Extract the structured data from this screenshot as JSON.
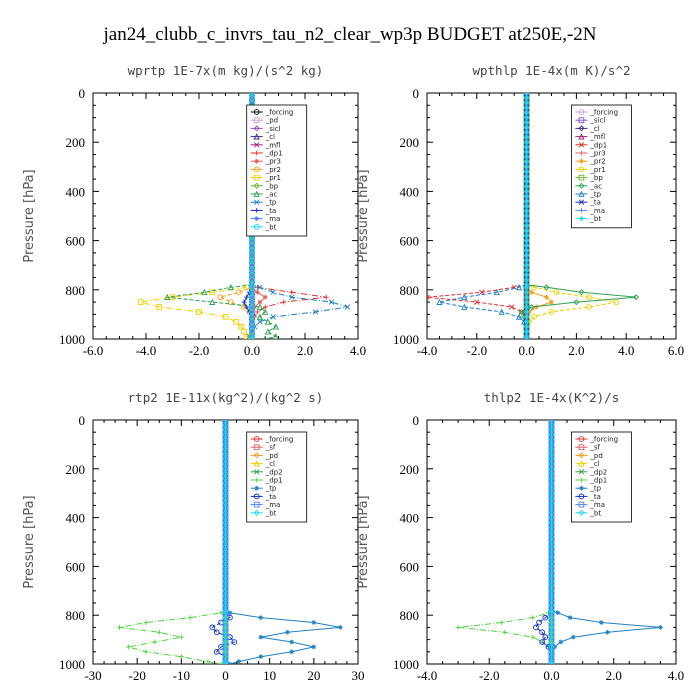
{
  "figure_title": "jan24_clubb_c_invrs_tau_n2_clear_wp3p  BUDGET at250E,-2N",
  "chart_data": [
    {
      "type": "line",
      "title": "wprtp   1E-7x(m kg)/(s^2 kg)",
      "ylabel": "Pressure [hPa]",
      "xlim": [
        -6,
        4
      ],
      "ylim": [
        1000,
        0
      ],
      "xticks": [
        "-6.0",
        "-4.0",
        "-2.0",
        "0.0",
        "2.0",
        "4.0"
      ],
      "yticks": [
        "0",
        "200",
        "400",
        "600",
        "800",
        "1000"
      ],
      "legend_position": "top-right",
      "y": [
        790,
        810,
        830,
        850,
        870,
        890,
        910,
        930,
        950,
        970,
        990,
        1000
      ],
      "series": [
        {
          "name": "_forcing",
          "color": "#000000",
          "values": [
            0,
            0,
            0,
            0,
            0,
            0,
            0,
            0,
            0,
            0,
            0,
            0
          ]
        },
        {
          "name": "_pd",
          "color": "#c8a0e0",
          "values": [
            0,
            0,
            0,
            0,
            0,
            0,
            0,
            0,
            0,
            0,
            0,
            0
          ]
        },
        {
          "name": "_sicl",
          "color": "#9050c0",
          "values": [
            0,
            0,
            0,
            0,
            0,
            0,
            0,
            0,
            0,
            0,
            0,
            0
          ]
        },
        {
          "name": "_cl",
          "color": "#3a2e8a",
          "values": [
            0,
            0,
            0,
            0,
            0,
            0,
            0,
            0,
            0,
            0,
            0,
            0
          ]
        },
        {
          "name": "_mfl",
          "color": "#a0206a",
          "values": [
            0,
            0,
            0,
            0,
            0,
            0,
            0,
            0,
            0,
            0,
            0,
            0
          ]
        },
        {
          "name": "_dp1",
          "color": "#e03030",
          "values": [
            0.2,
            1.5,
            2.8,
            1.2,
            0.5,
            0.2,
            0.1,
            0,
            0,
            0,
            0,
            0
          ]
        },
        {
          "name": "_pr3",
          "color": "#e06060",
          "values": [
            0,
            0.2,
            0.5,
            0.3,
            0.1,
            0,
            0,
            0,
            0,
            0,
            0,
            0
          ]
        },
        {
          "name": "_pr2",
          "color": "#f0a020",
          "values": [
            0,
            -0.5,
            -1.2,
            -0.8,
            -0.3,
            -0.1,
            0,
            0,
            0,
            0,
            0,
            0
          ]
        },
        {
          "name": "_pr1",
          "color": "#f0d000",
          "values": [
            -0.2,
            -1.5,
            -3,
            -4.2,
            -3.5,
            -2,
            -1,
            -0.6,
            -0.4,
            -0.3,
            -0.2,
            -0.1
          ]
        },
        {
          "name": "_bp",
          "color": "#70b030",
          "values": [
            0,
            0,
            0,
            0,
            0,
            0,
            0,
            0,
            0,
            0,
            0,
            0
          ]
        },
        {
          "name": "_ac",
          "color": "#30a050",
          "values": [
            -0.8,
            -1.8,
            -3.2,
            -1.5,
            0.3,
            0.5,
            0.3,
            0.6,
            0.9,
            0.6,
            0.9,
            0.5
          ]
        },
        {
          "name": "_tp",
          "color": "#2080c0",
          "values": [
            0.3,
            0.8,
            1.5,
            3,
            3.6,
            2.4,
            0.8,
            0.3,
            0.1,
            0,
            -0.1,
            0
          ]
        },
        {
          "name": "_ta",
          "color": "#1030c0",
          "values": [
            0,
            -0.1,
            -0.2,
            -0.3,
            -0.2,
            -0.1,
            0,
            0,
            0,
            0,
            0,
            0
          ]
        },
        {
          "name": "_ma",
          "color": "#5080ff",
          "values": [
            0,
            0,
            0,
            0,
            0,
            0,
            0,
            0,
            0,
            0,
            0,
            0
          ]
        },
        {
          "name": "_bt",
          "color": "#20d8f0",
          "values": [
            0,
            0,
            0,
            0,
            0,
            0,
            0,
            0,
            0,
            0,
            0,
            0
          ]
        }
      ]
    },
    {
      "type": "line",
      "title": "wpthlp   1E-4x(m K)/s^2",
      "ylabel": "Pressure [hPa]",
      "xlim": [
        -4,
        6
      ],
      "ylim": [
        1000,
        0
      ],
      "xticks": [
        "-4.0",
        "-2.0",
        "0.0",
        "2.0",
        "4.0",
        "6.0"
      ],
      "yticks": [
        "0",
        "200",
        "400",
        "600",
        "800",
        "1000"
      ],
      "legend_position": "top-right",
      "y": [
        790,
        810,
        830,
        850,
        870,
        890,
        910,
        930,
        950,
        970,
        990,
        1000
      ],
      "series": [
        {
          "name": "_forcing",
          "color": "#c8a0e0",
          "values": [
            0,
            0,
            0,
            0,
            0,
            0,
            0,
            0,
            0,
            0,
            0,
            0
          ]
        },
        {
          "name": "_sicl",
          "color": "#9050c0",
          "values": [
            0,
            0,
            0,
            0,
            0,
            0,
            0,
            0,
            0,
            0,
            0,
            0
          ]
        },
        {
          "name": "_cl",
          "color": "#3a2e8a",
          "values": [
            0,
            0,
            0,
            0,
            0,
            0,
            0,
            0,
            0,
            0,
            0,
            0
          ]
        },
        {
          "name": "_mfl",
          "color": "#a0206a",
          "values": [
            0,
            0,
            0,
            0,
            0,
            0,
            0,
            0,
            0,
            0,
            0,
            0
          ]
        },
        {
          "name": "_dp1",
          "color": "#e03030",
          "values": [
            -0.5,
            -1.8,
            -4,
            -2,
            -0.6,
            -0.2,
            0,
            0,
            0,
            0,
            0,
            0
          ]
        },
        {
          "name": "_pr3",
          "color": "#e06060",
          "values": [
            0,
            0,
            0,
            0,
            0,
            0,
            0,
            0,
            0,
            0,
            0,
            0
          ]
        },
        {
          "name": "_pr2",
          "color": "#f0a020",
          "values": [
            0,
            0.2,
            0.8,
            1,
            0.4,
            0.1,
            0,
            0,
            0,
            0,
            0,
            0
          ]
        },
        {
          "name": "_pr1",
          "color": "#f0d000",
          "values": [
            0.3,
            1.2,
            2.5,
            3.6,
            2.5,
            1,
            0.3,
            0.1,
            0,
            0,
            0,
            0
          ]
        },
        {
          "name": "_bp",
          "color": "#70b030",
          "values": [
            0,
            0,
            0,
            0,
            0,
            0,
            0,
            0,
            0,
            0,
            0,
            0
          ]
        },
        {
          "name": "_ac",
          "color": "#30a050",
          "values": [
            0.8,
            2.2,
            4.4,
            2,
            0.2,
            -0.2,
            -0.1,
            0,
            0,
            0,
            0,
            0
          ]
        },
        {
          "name": "_tp",
          "color": "#2080c0",
          "values": [
            -0.3,
            -1.2,
            -2.5,
            -3.5,
            -2.5,
            -1,
            -0.3,
            -0.1,
            0,
            0,
            0,
            0
          ]
        },
        {
          "name": "_ta",
          "color": "#1030c0",
          "values": [
            0,
            0,
            0,
            0,
            0,
            0,
            0,
            0,
            0,
            0,
            0,
            0
          ]
        },
        {
          "name": "_ma",
          "color": "#5080ff",
          "values": [
            0,
            0,
            0,
            0,
            0,
            0,
            0,
            0,
            0,
            0,
            0,
            0
          ]
        },
        {
          "name": "_bt",
          "color": "#20d8f0",
          "values": [
            0,
            0,
            0,
            0,
            0,
            0,
            0,
            0,
            0,
            0,
            0,
            0
          ]
        }
      ]
    },
    {
      "type": "line",
      "title": "rtp2   1E-11x(kg^2)/(kg^2 s)",
      "ylabel": "Pressure [hPa]",
      "xlim": [
        -30,
        30
      ],
      "ylim": [
        1000,
        0
      ],
      "xticks": [
        "-30",
        "-20",
        "-10",
        "0",
        "10",
        "20",
        "30"
      ],
      "yticks": [
        "0",
        "200",
        "400",
        "600",
        "800",
        "1000"
      ],
      "legend_position": "top-right",
      "y": [
        790,
        810,
        830,
        850,
        870,
        890,
        910,
        930,
        950,
        970,
        990,
        1000
      ],
      "series": [
        {
          "name": "_forcing",
          "color": "#e03030",
          "values": [
            0,
            0,
            0,
            0,
            0,
            0,
            0,
            0,
            0,
            0,
            0,
            0
          ]
        },
        {
          "name": "_sf",
          "color": "#e06060",
          "values": [
            0,
            0,
            0,
            0,
            0,
            0,
            0,
            0,
            0,
            0,
            0,
            0
          ]
        },
        {
          "name": "_pd",
          "color": "#f0a020",
          "values": [
            0,
            0,
            0,
            0,
            0,
            0,
            0,
            0,
            0,
            0,
            0,
            0
          ]
        },
        {
          "name": "_cl",
          "color": "#f0d000",
          "values": [
            0,
            0,
            0,
            0,
            0,
            0,
            0,
            0,
            0,
            0,
            0,
            0
          ]
        },
        {
          "name": "_dp2",
          "color": "#30a050",
          "values": [
            0,
            0,
            0,
            0,
            0,
            0,
            0,
            0,
            0,
            0,
            0,
            0
          ]
        },
        {
          "name": "_dp1",
          "color": "#50d040",
          "values": [
            -1,
            -8,
            -18,
            -24,
            -15,
            -10,
            -16,
            -22,
            -18,
            -10,
            -4,
            -1
          ]
        },
        {
          "name": "_tp",
          "color": "#2080c0",
          "values": [
            1,
            8,
            20,
            26,
            14,
            8,
            15,
            20,
            15,
            8,
            3,
            1
          ]
        },
        {
          "name": "_ta",
          "color": "#1030c0",
          "values": [
            0,
            1,
            -1,
            -3,
            -2,
            1,
            2,
            -1,
            -2,
            0,
            0,
            0
          ]
        },
        {
          "name": "_ma",
          "color": "#5080ff",
          "values": [
            0,
            0,
            0,
            0,
            0,
            0,
            0,
            0,
            0,
            0,
            0,
            0
          ]
        },
        {
          "name": "_bt",
          "color": "#20d8f0",
          "values": [
            0,
            0,
            0,
            0,
            0,
            0,
            0,
            0,
            0,
            0,
            0,
            0
          ]
        }
      ]
    },
    {
      "type": "line",
      "title": "thlp2   1E-4x(K^2)/s",
      "ylabel": "Pressure [hPa]",
      "xlim": [
        -4,
        4
      ],
      "ylim": [
        1000,
        0
      ],
      "xticks": [
        "-4.0",
        "-2.0",
        "0.0",
        "2.0",
        "4.0"
      ],
      "yticks": [
        "0",
        "200",
        "400",
        "600",
        "800",
        "1000"
      ],
      "legend_position": "top-right",
      "y": [
        790,
        810,
        830,
        850,
        870,
        890,
        910,
        930,
        950,
        970,
        990,
        1000
      ],
      "series": [
        {
          "name": "_forcing",
          "color": "#e03030",
          "values": [
            0,
            0,
            0,
            0,
            0,
            0,
            0,
            0,
            0,
            0,
            0,
            0
          ]
        },
        {
          "name": "_sf",
          "color": "#e06060",
          "values": [
            0,
            0,
            0,
            0,
            0,
            0,
            0,
            0,
            0,
            0,
            0,
            0
          ]
        },
        {
          "name": "_pd",
          "color": "#f0a020",
          "values": [
            0,
            0,
            0,
            0,
            0,
            0,
            0,
            0,
            0,
            0,
            0,
            0
          ]
        },
        {
          "name": "_cl",
          "color": "#f0d000",
          "values": [
            0,
            0,
            0,
            0,
            0,
            0,
            0,
            0,
            0,
            0,
            0,
            0
          ]
        },
        {
          "name": "_dp2",
          "color": "#30a050",
          "values": [
            0,
            0,
            0,
            0,
            0,
            0,
            0,
            0,
            0,
            0,
            0,
            0
          ]
        },
        {
          "name": "_dp1",
          "color": "#50d040",
          "values": [
            -0.1,
            -0.6,
            -1.6,
            -3,
            -1.5,
            -0.6,
            -0.3,
            -0.1,
            0,
            0,
            0,
            0
          ]
        },
        {
          "name": "_tp",
          "color": "#2080c0",
          "values": [
            0.2,
            0.6,
            1.6,
            3.5,
            1.8,
            0.7,
            0.3,
            0.1,
            0,
            0,
            0,
            0
          ]
        },
        {
          "name": "_ta",
          "color": "#1030c0",
          "values": [
            0,
            -0.2,
            -0.4,
            -0.5,
            -0.3,
            -0.2,
            -0.3,
            -0.1,
            0,
            0,
            0,
            0
          ]
        },
        {
          "name": "_ma",
          "color": "#5080ff",
          "values": [
            0,
            0,
            0,
            0,
            0,
            0,
            0,
            0,
            0,
            0,
            0,
            0
          ]
        },
        {
          "name": "_bt",
          "color": "#20d8f0",
          "values": [
            0,
            0,
            0,
            0,
            0,
            0,
            0,
            0,
            0,
            0,
            0,
            0
          ]
        }
      ]
    }
  ]
}
